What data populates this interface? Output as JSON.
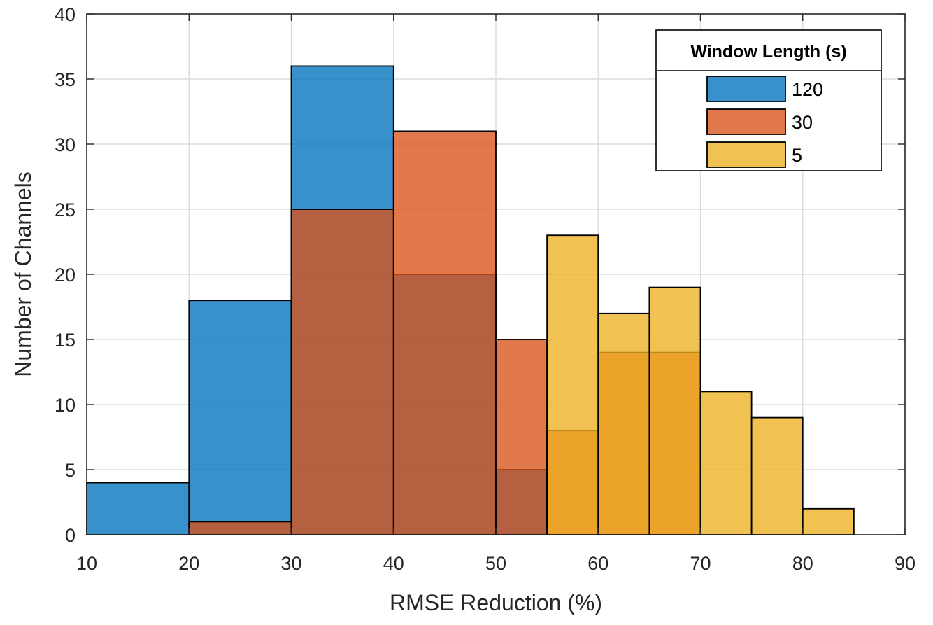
{
  "chart_data": {
    "type": "bar",
    "subtype": "overlaid-histogram",
    "title": "",
    "xlabel": "RMSE Reduction (%)",
    "ylabel": "Number of Channels",
    "xlim": [
      10,
      90
    ],
    "ylim": [
      0,
      40
    ],
    "xticks": [
      10,
      20,
      30,
      40,
      50,
      60,
      70,
      80,
      90
    ],
    "yticks": [
      0,
      5,
      10,
      15,
      20,
      25,
      30,
      35,
      40
    ],
    "grid": true,
    "legend": {
      "title": "Window Length (s)",
      "placement": "top-right"
    },
    "series": [
      {
        "name": "120",
        "color": "#0072BD",
        "bin_edges": [
          10,
          20,
          30,
          40,
          50,
          55
        ],
        "values": [
          4,
          18,
          36,
          20,
          5
        ]
      },
      {
        "name": "30",
        "color": "#D95319",
        "bin_edges": [
          20,
          30,
          40,
          50,
          55,
          60,
          65,
          70
        ],
        "values": [
          1,
          25,
          31,
          15,
          8,
          14,
          14
        ]
      },
      {
        "name": "5",
        "color": "#EDB120",
        "bin_edges": [
          55,
          60,
          65,
          70,
          75,
          80,
          85
        ],
        "values": [
          23,
          17,
          19,
          11,
          9,
          2
        ]
      }
    ]
  }
}
